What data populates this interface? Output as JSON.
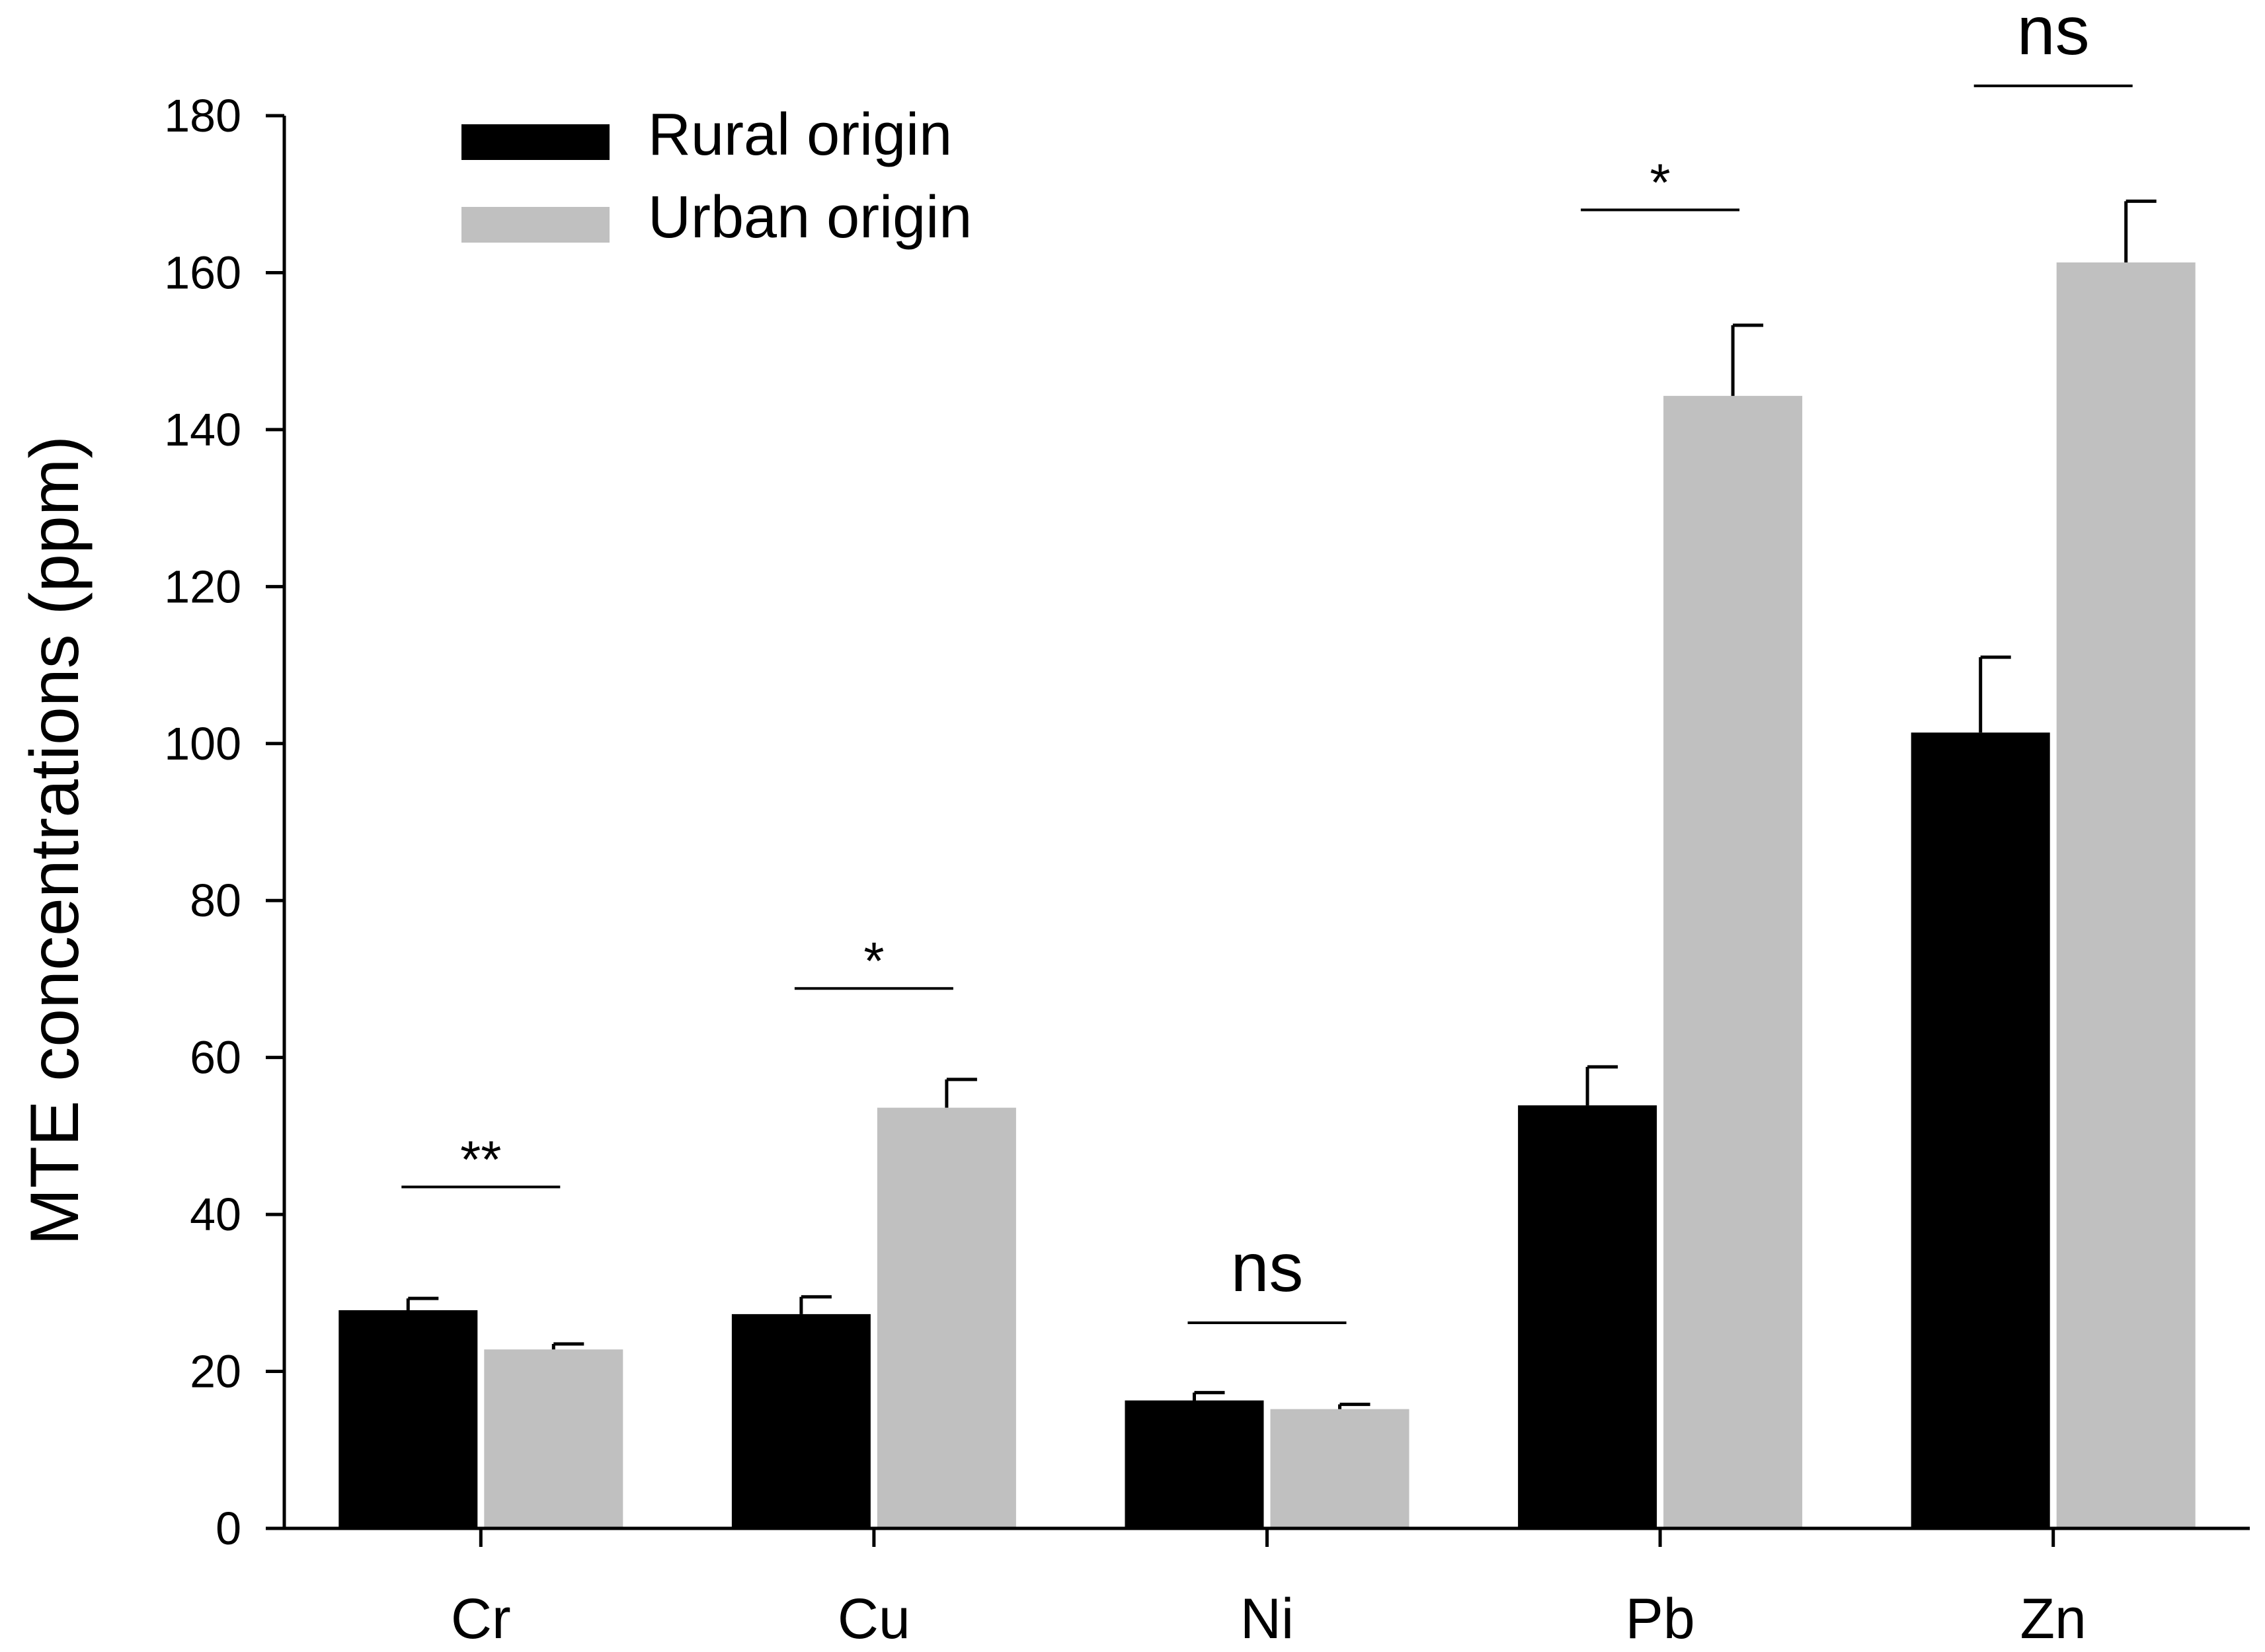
{
  "chart_data": {
    "type": "bar",
    "title": "",
    "xlabel": "",
    "ylabel": "MTE concentrations (ppm)",
    "ylim": [
      0,
      180
    ],
    "yticks": [
      0,
      20,
      40,
      60,
      80,
      100,
      120,
      140,
      160,
      180
    ],
    "categories": [
      "Cr",
      "Cu",
      "Ni",
      "Pb",
      "Zn"
    ],
    "series": [
      {
        "name": "Rural origin",
        "color": "#000000",
        "values": [
          27.8,
          27.3,
          16.3,
          53.9,
          101.4
        ],
        "errors": [
          1.5,
          2.2,
          1.0,
          4.9,
          9.6
        ]
      },
      {
        "name": "Urban origin",
        "color": "#c0c0c0",
        "values": [
          22.8,
          53.6,
          15.2,
          144.3,
          161.3
        ],
        "errors": [
          0.7,
          3.6,
          0.6,
          9.0,
          7.8
        ]
      }
    ],
    "significance": [
      {
        "category": "Cr",
        "label": "**",
        "line_y": 43.5
      },
      {
        "category": "Cu",
        "label": "*",
        "line_y": 68.8
      },
      {
        "category": "Ni",
        "label": "ns",
        "line_y": 26.2
      },
      {
        "category": "Pb",
        "label": "*",
        "line_y": 168.0
      },
      {
        "category": "Zn",
        "label": "ns",
        "line_y": 183.8
      }
    ],
    "legend_position": "top-left",
    "grid": false
  }
}
